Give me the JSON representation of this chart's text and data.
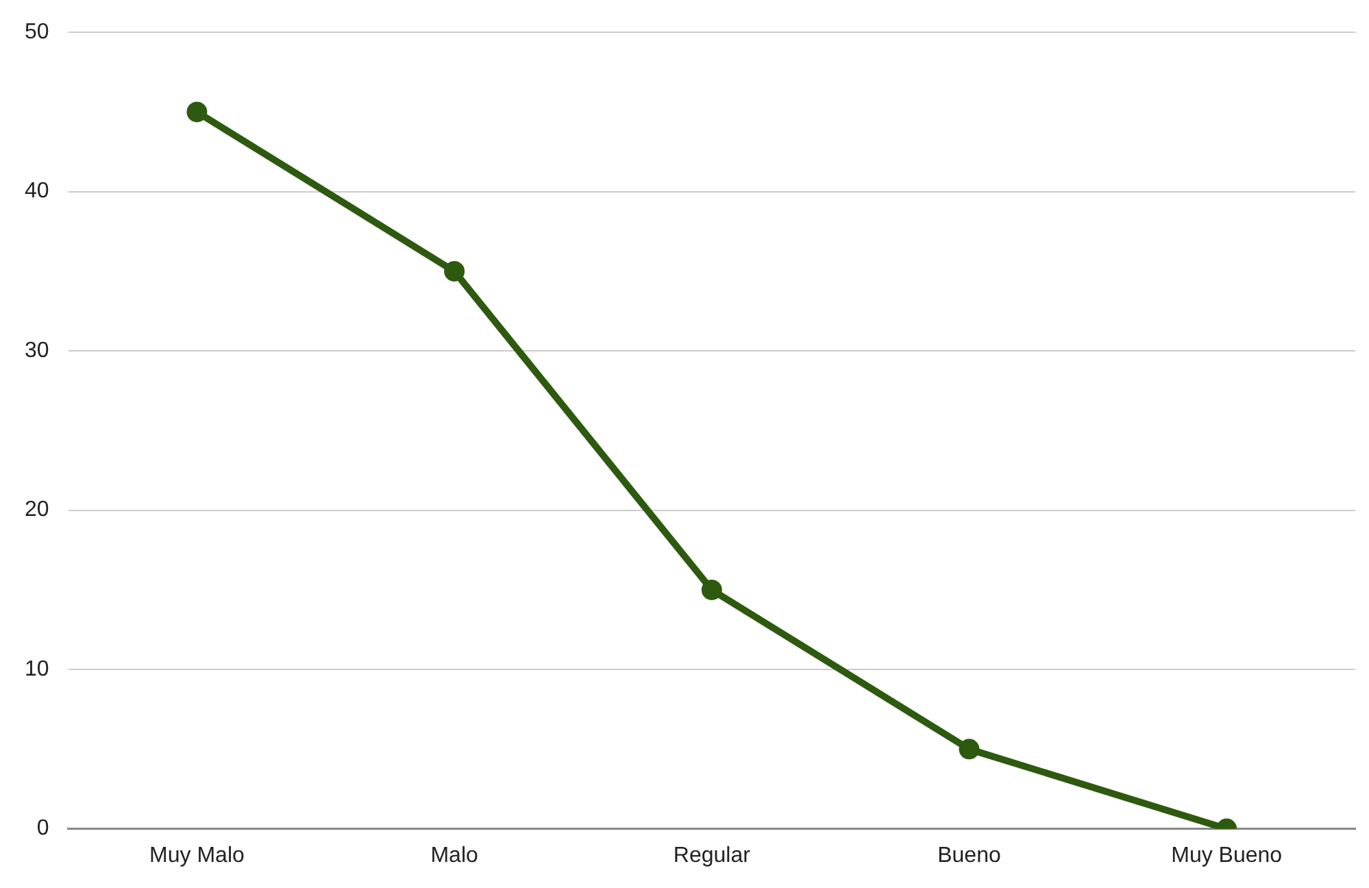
{
  "chart_data": {
    "type": "line",
    "categories": [
      "Muy Malo",
      "Malo",
      "Regular",
      "Bueno",
      "Muy Bueno"
    ],
    "series": [
      {
        "color": "#2e5a10",
        "values": [
          45,
          35,
          15,
          5,
          0
        ]
      }
    ],
    "ylim": [
      0,
      50
    ],
    "yticks": [
      0,
      10,
      20,
      30,
      40,
      50
    ],
    "grid": "y",
    "legend": false,
    "marker": "circle",
    "line_style": "solid"
  }
}
